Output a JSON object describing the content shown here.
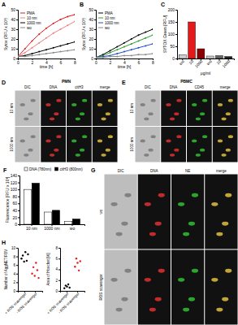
{
  "chart_data": [
    {
      "type": "line",
      "title": "A",
      "x": [
        0,
        1,
        2,
        3,
        4,
        5,
        6,
        7,
        8
      ],
      "xlim": [
        0,
        8
      ],
      "xticks": [
        0,
        2,
        4,
        6,
        8
      ],
      "ylim": [
        0,
        50
      ],
      "yticks": [
        0,
        10,
        20,
        30,
        40,
        50
      ],
      "x_label": "time [h]",
      "y_label": "Sytox (RFU x 10³)",
      "legend": "top-left",
      "marker": "circle",
      "series": [
        {
          "name": "PMA",
          "color": "#e31a1c",
          "values": [
            2,
            10,
            18,
            25,
            31,
            36,
            40,
            43,
            45
          ]
        },
        {
          "name": "10 nm",
          "color": "#f08080",
          "values": [
            2,
            6,
            11,
            16,
            21,
            26,
            30,
            34,
            38
          ]
        },
        {
          "name": "1000 nm",
          "color": "#000000",
          "values": [
            2,
            3,
            5,
            7,
            9,
            11,
            13,
            15,
            17
          ]
        },
        {
          "name": "wo",
          "color": "#888888",
          "values": [
            2,
            2,
            3,
            4,
            5,
            6,
            7,
            8,
            9
          ]
        }
      ]
    },
    {
      "type": "line",
      "title": "B",
      "x": [
        0,
        1,
        2,
        3,
        4,
        5,
        6,
        7,
        8
      ],
      "xlim": [
        0,
        8
      ],
      "xticks": [
        0,
        2,
        4,
        6,
        8
      ],
      "ylim": [
        0,
        50
      ],
      "yticks": [
        0,
        10,
        20,
        30,
        40,
        50
      ],
      "x_label": "time [h]",
      "y_label": "Sytox (RFU x 10³)",
      "legend": "top-left",
      "marker": "circle",
      "series": [
        {
          "name": "PMA",
          "color": "#000000",
          "values": [
            1,
            4,
            8,
            12,
            16,
            20,
            24,
            27,
            30
          ]
        },
        {
          "name": "10 nm",
          "color": "#2ca02c",
          "values": [
            1,
            3,
            6,
            9,
            12,
            15,
            18,
            21,
            24
          ]
        },
        {
          "name": "1000 nm",
          "color": "#1f4fd0",
          "values": [
            1,
            2,
            3,
            5,
            7,
            9,
            11,
            13,
            15
          ]
        },
        {
          "name": "wo",
          "color": "#888888",
          "values": [
            1,
            1,
            2,
            2,
            3,
            3,
            4,
            4,
            5
          ]
        }
      ]
    },
    {
      "type": "bar",
      "title": "C",
      "categories": [
        "wo",
        "10",
        "1000",
        "wo",
        "10",
        "1000"
      ],
      "values": [
        15,
        150,
        40,
        10,
        12,
        8
      ],
      "colors": [
        "#cccccc",
        "#e31a1c",
        "#8b0000",
        "#cccccc",
        "#666666",
        "#222222"
      ],
      "ylim": [
        0,
        200
      ],
      "yticks": [
        0,
        50,
        100,
        150,
        200
      ],
      "y_label": "SYTOX Green [RFU]",
      "x_label": "μg/ml"
    },
    {
      "type": "bar",
      "title": "F",
      "categories": [
        "10 nm",
        "1000 nm",
        "wo"
      ],
      "series": [
        {
          "name": "DNA (780nm)",
          "color": "#ffffff",
          "values": [
            100,
            35,
            8
          ]
        },
        {
          "name": "citH3 (800nm)",
          "color": "#000000",
          "values": [
            118,
            40,
            15
          ]
        }
      ],
      "ylim": [
        0,
        140
      ],
      "yticks": [
        0,
        20,
        40,
        60,
        80,
        100,
        120,
        140
      ],
      "y_label": "Fluorescence [RFU x 10³]",
      "legend": "top"
    },
    {
      "type": "strip",
      "title": "H",
      "categories": [
        "+ ROS scavenger",
        "- ROS scavenger"
      ],
      "groups": [
        {
          "color": "#000000",
          "values": [
            7.5,
            8.2,
            6.8,
            9.0,
            7.0,
            8.5
          ]
        },
        {
          "color": "#e31a1c",
          "values": [
            4.0,
            5.5,
            3.5,
            6.5,
            4.8,
            3.0
          ]
        }
      ],
      "ylim": [
        0,
        10
      ],
      "yticks": [
        0,
        2,
        4,
        6,
        8,
        10
      ],
      "y_label": "Number of AggNET/FOV"
    },
    {
      "type": "strip",
      "categories": [
        "+ ROS scavenger",
        "- ROS scavenger"
      ],
      "groups": [
        {
          "color": "#000000",
          "values": [
            0.5,
            1.0,
            0.8,
            1.2,
            0.6
          ]
        },
        {
          "color": "#e31a1c",
          "values": [
            4.5,
            6.0,
            5.2,
            3.8,
            5.5
          ]
        }
      ],
      "ylim": [
        0,
        8
      ],
      "yticks": [
        0,
        2,
        4,
        6,
        8
      ],
      "y_label": "Area of Hoechst [%]"
    }
  ],
  "panels": [
    {
      "letter": "D",
      "header": "PMN",
      "rows": [
        "10 nm",
        "1000 nm"
      ],
      "columns": [
        "DIC",
        "DNA",
        "citH3",
        "merge"
      ]
    },
    {
      "letter": "E",
      "header": "PBMC",
      "rows": [
        "10 nm",
        "1000 nm"
      ],
      "columns": [
        "DIC",
        "DNA",
        "CD45",
        "merge"
      ]
    },
    {
      "letter": "G",
      "rows": [
        "wo",
        "ROS scavenger"
      ],
      "columns": [
        "DIC",
        "DNA",
        "NE",
        "merge"
      ]
    }
  ]
}
